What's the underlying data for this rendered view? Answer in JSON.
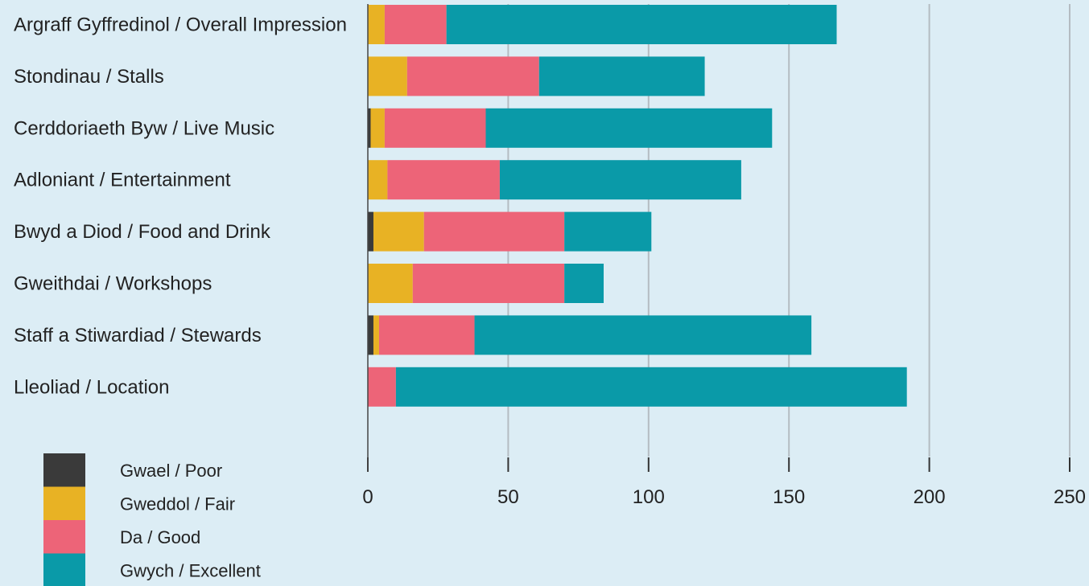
{
  "chart_data": {
    "type": "bar",
    "orientation": "horizontal",
    "stacked": true,
    "categories": [
      "Argraff Gyffredinol / Overall Impression",
      "Stondinau / Stalls",
      "Cerddoriaeth Byw / Live Music",
      "Adloniant / Entertainment",
      "Bwyd a Diod / Food and Drink",
      "Gweithdai / Workshops",
      "Staff a Stiwardiad / Stewards",
      "Lleoliad / Location"
    ],
    "series": [
      {
        "name": "Gwael / Poor",
        "color": "#3a3a3a",
        "values": [
          0,
          0,
          1,
          0,
          2,
          0,
          2,
          0
        ]
      },
      {
        "name": "Gweddol / Fair",
        "color": "#e8b224",
        "values": [
          6,
          14,
          5,
          7,
          18,
          16,
          2,
          0
        ]
      },
      {
        "name": "Da / Good",
        "color": "#ed6478",
        "values": [
          22,
          47,
          36,
          40,
          50,
          54,
          34,
          10
        ]
      },
      {
        "name": "Gwych / Excellent",
        "color": "#0a9aa8",
        "values": [
          139,
          59,
          102,
          86,
          31,
          14,
          120,
          182
        ]
      }
    ],
    "xlim": [
      0,
      250
    ],
    "xticks": [
      "0",
      "50",
      "100",
      "150",
      "200",
      "250"
    ],
    "grid": true,
    "legend_position": "bottom-left",
    "title": "",
    "xlabel": "",
    "ylabel": ""
  }
}
